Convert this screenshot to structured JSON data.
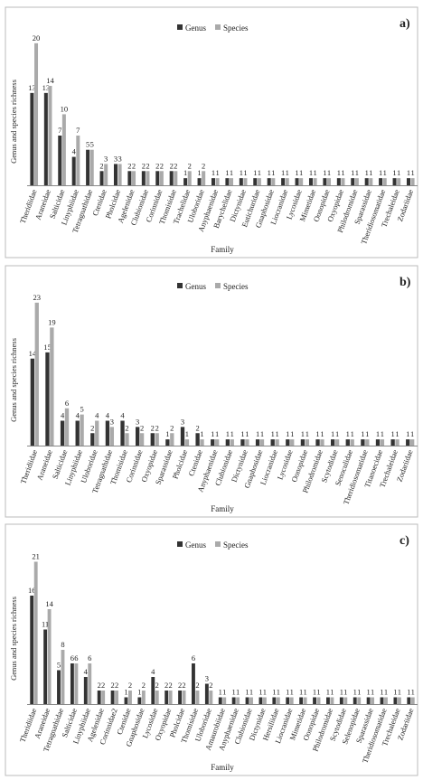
{
  "legend": {
    "genus_label": "Genus",
    "species_label": "Species"
  },
  "colors": {
    "genus": "#333333",
    "species": "#aaaaaa",
    "axis": "#888888",
    "frame": "#bbbbbb"
  },
  "chart_data": [
    {
      "type": "bar",
      "panel_label": "a)",
      "xlabel": "Family",
      "ylabel": "Genus and species richness",
      "ylim": [
        0,
        21
      ],
      "legend_position": "top-center",
      "categories": [
        "Theridiidae",
        "Araneidae",
        "Salticidae",
        "Linyphiidae",
        "Tetragnathidae",
        "Ctenidae",
        "Pholcidae",
        "Agelenidae",
        "Clubionidae",
        "Corinnidae",
        "Thomisidae",
        "Trachelidae",
        "Uloboridae",
        "Anyphaenidae",
        "Barychelidae",
        "Dictynidae",
        "Eutichuridae",
        "Gnaphosidae",
        "Liocranidae",
        "Lycosidae",
        "Mimetidae",
        "Oonopidae",
        "Oxyopidae",
        "Philodromidae",
        "Sparassidae",
        "Theridiosomatidae",
        "Trechaleidae",
        "Zodariidae"
      ],
      "series": [
        {
          "name": "Genus",
          "values": [
            13,
            13,
            7,
            4,
            5,
            2,
            3,
            2,
            2,
            2,
            2,
            1,
            1,
            1,
            1,
            1,
            1,
            1,
            1,
            1,
            1,
            1,
            1,
            1,
            1,
            1,
            1,
            1
          ]
        },
        {
          "name": "Species",
          "values": [
            20,
            14,
            10,
            7,
            5,
            3,
            3,
            2,
            2,
            2,
            2,
            2,
            2,
            1,
            1,
            1,
            1,
            1,
            1,
            1,
            1,
            1,
            1,
            1,
            1,
            1,
            1,
            1
          ]
        }
      ]
    },
    {
      "type": "bar",
      "panel_label": "b)",
      "xlabel": "Family",
      "ylabel": "Genus and species richness",
      "ylim": [
        0,
        24
      ],
      "legend_position": "top-center",
      "categories": [
        "Theridiidae",
        "Araneidae",
        "Salticidae",
        "Linyphiidae",
        "Uloboridae",
        "Tetragnathidae",
        "Thomisidae",
        "Corinnidae",
        "Oxyopidae",
        "Sparassidae",
        "Pholcidae",
        "Ctenidae",
        "Anyphaenidae",
        "Clubionidae",
        "Dictynidae",
        "Gnaphosidae",
        "Liocranidae",
        "Lycosidae",
        "Oonopidae",
        "Philodromidae",
        "Scytodidae",
        "Senoculidae",
        "Theridiosomatidae",
        "Titanoecidae",
        "Trechaleidae",
        "Zodariidae"
      ],
      "series": [
        {
          "name": "Genus",
          "values": [
            14,
            15,
            4,
            4,
            2,
            4,
            4,
            3,
            2,
            1,
            3,
            2,
            1,
            1,
            1,
            1,
            1,
            1,
            1,
            1,
            1,
            1,
            1,
            1,
            1,
            1
          ]
        },
        {
          "name": "Species",
          "values": [
            23,
            19,
            6,
            5,
            4,
            3,
            2,
            2,
            2,
            2,
            1,
            1,
            1,
            1,
            1,
            1,
            1,
            1,
            1,
            1,
            1,
            1,
            1,
            1,
            1,
            1
          ]
        }
      ]
    },
    {
      "type": "bar",
      "panel_label": "c)",
      "xlabel": "Family",
      "ylabel": "Genus and species richness",
      "ylim": [
        0,
        22
      ],
      "legend_position": "top-center",
      "categories": [
        "Theridiidae",
        "Araneidae",
        "Tetragnathidae",
        "Salticidae",
        "Linyphiidae",
        "Agelenidae",
        "Corinnidae2",
        "Ctenidae",
        "Gnaphosidae",
        "Lycosidae",
        "Oxyopidae",
        "Pholcidae",
        "Thomisidae",
        "Uloboridae",
        "Amaurobiidae",
        "Anyphaenidae",
        "Clubionidae",
        "Dictynidae",
        "Hersiliidae",
        "Liocranidae",
        "Mimetidae",
        "Oonopidae",
        "Philodromidae",
        "Scytodidae",
        "Selenopidae",
        "Sparassidae",
        "Theridiosomatidae",
        "Trechaleidae",
        "Zodariidae"
      ],
      "series": [
        {
          "name": "Genus",
          "values": [
            16,
            11,
            5,
            6,
            4,
            2,
            2,
            1,
            1,
            4,
            2,
            2,
            6,
            3,
            1,
            1,
            1,
            1,
            1,
            1,
            1,
            1,
            1,
            1,
            1,
            1,
            1,
            1,
            1
          ]
        },
        {
          "name": "Species",
          "values": [
            21,
            14,
            8,
            6,
            6,
            2,
            2,
            2,
            2,
            2,
            2,
            2,
            2,
            2,
            1,
            1,
            1,
            1,
            1,
            1,
            1,
            1,
            1,
            1,
            1,
            1,
            1,
            1,
            1
          ]
        }
      ]
    }
  ]
}
